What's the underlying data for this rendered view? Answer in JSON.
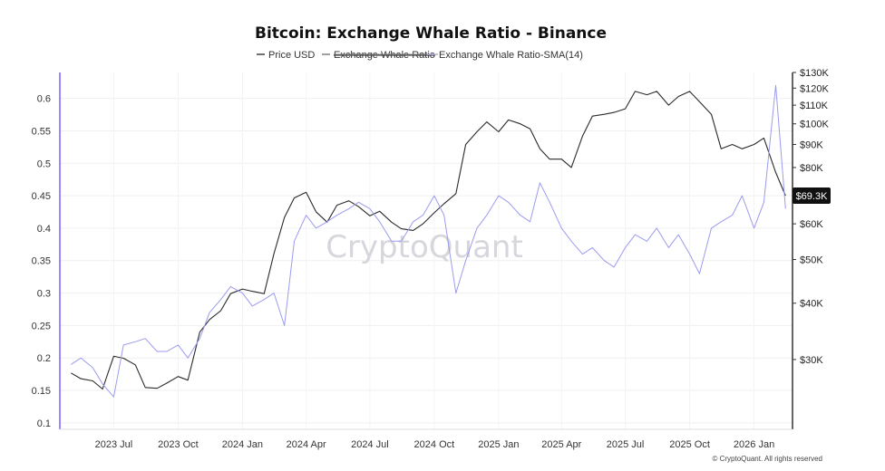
{
  "chart_data": {
    "type": "line",
    "title": "Bitcoin: Exchange Whale Ratio - Binance",
    "legend": [
      {
        "label": "Price USD",
        "color": "#333333",
        "struck": false
      },
      {
        "label": "Exchange Whale Ratio",
        "color": "#777777",
        "struck": true
      },
      {
        "label": "Exchange Whale Ratio-SMA(14)",
        "color": "#b6b6f0",
        "struck": false
      }
    ],
    "legend_position": "top-center",
    "x_ticks": [
      "2023 Jul",
      "2023 Oct",
      "2024 Jan",
      "2024 Apr",
      "2024 Jul",
      "2024 Oct",
      "2025 Jan",
      "2025 Apr",
      "2025 Jul",
      "2025 Oct",
      "2026 Jan"
    ],
    "y_left": {
      "ticks": [
        "0.1",
        "0.15",
        "0.2",
        "0.25",
        "0.3",
        "0.35",
        "0.4",
        "0.45",
        "0.5",
        "0.55",
        "0.6"
      ],
      "ylim": [
        0.09,
        0.64
      ],
      "color": "#7b61ff"
    },
    "y_right": {
      "ticks": [
        "$30K",
        "$40K",
        "$50K",
        "$60K",
        "$80K",
        "$90K",
        "$100K",
        "$110K",
        "$120K",
        "$130K"
      ],
      "scale": "log",
      "ylim": [
        21000,
        130000
      ]
    },
    "current_price_label": "$69.3K",
    "grid": true,
    "x_dates": [
      "2023-05-01",
      "2023-05-15",
      "2023-06-01",
      "2023-06-15",
      "2023-07-01",
      "2023-07-15",
      "2023-08-01",
      "2023-08-15",
      "2023-09-01",
      "2023-09-15",
      "2023-10-01",
      "2023-10-15",
      "2023-11-01",
      "2023-11-15",
      "2023-12-01",
      "2023-12-15",
      "2024-01-01",
      "2024-01-15",
      "2024-02-01",
      "2024-02-15",
      "2024-03-01",
      "2024-03-15",
      "2024-04-01",
      "2024-04-15",
      "2024-05-01",
      "2024-05-15",
      "2024-06-01",
      "2024-06-15",
      "2024-07-01",
      "2024-07-15",
      "2024-08-01",
      "2024-08-15",
      "2024-09-01",
      "2024-09-15",
      "2024-10-01",
      "2024-10-15",
      "2024-11-01",
      "2024-11-15",
      "2024-12-01",
      "2024-12-15",
      "2025-01-01",
      "2025-01-15",
      "2025-02-01",
      "2025-02-15",
      "2025-03-01",
      "2025-03-15",
      "2025-04-01",
      "2025-04-15",
      "2025-05-01",
      "2025-05-15",
      "2025-06-01",
      "2025-06-15",
      "2025-07-01",
      "2025-07-15",
      "2025-08-01",
      "2025-08-15",
      "2025-09-01",
      "2025-09-15",
      "2025-10-01",
      "2025-10-15",
      "2025-11-01",
      "2025-11-15",
      "2025-12-01",
      "2025-12-15",
      "2026-01-01",
      "2026-01-15",
      "2026-02-01",
      "2026-02-15"
    ],
    "series": [
      {
        "name": "Price USD",
        "axis": "right",
        "color": "#2a2a2a",
        "values": [
          28000,
          27200,
          26900,
          25800,
          30500,
          30200,
          29200,
          26000,
          25900,
          26600,
          27500,
          27000,
          34500,
          36800,
          38500,
          42000,
          43000,
          42500,
          42000,
          51500,
          62000,
          68500,
          70500,
          63800,
          60500,
          66000,
          67500,
          65500,
          62500,
          64000,
          60500,
          58500,
          58000,
          60000,
          63500,
          66500,
          70000,
          90000,
          96000,
          101000,
          96000,
          102000,
          100000,
          97500,
          88000,
          83500,
          83500,
          80000,
          94000,
          104000,
          105000,
          106000,
          108000,
          118000,
          116000,
          118000,
          110000,
          115000,
          118000,
          112000,
          105000,
          88000,
          90000,
          88000,
          90000,
          93000,
          78000,
          69300
        ]
      },
      {
        "name": "Exchange Whale Ratio-SMA(14)",
        "axis": "left",
        "color": "#9b9bf0",
        "values": [
          0.19,
          0.2,
          0.185,
          0.16,
          0.14,
          0.22,
          0.225,
          0.23,
          0.21,
          0.21,
          0.22,
          0.2,
          0.23,
          0.27,
          0.29,
          0.31,
          0.3,
          0.28,
          0.29,
          0.3,
          0.25,
          0.38,
          0.42,
          0.4,
          0.41,
          0.42,
          0.43,
          0.44,
          0.43,
          0.41,
          0.38,
          0.38,
          0.41,
          0.42,
          0.45,
          0.42,
          0.3,
          0.35,
          0.4,
          0.42,
          0.45,
          0.44,
          0.42,
          0.41,
          0.47,
          0.44,
          0.4,
          0.38,
          0.36,
          0.37,
          0.35,
          0.34,
          0.37,
          0.39,
          0.38,
          0.4,
          0.37,
          0.39,
          0.36,
          0.33,
          0.4,
          0.41,
          0.42,
          0.45,
          0.4,
          0.44,
          0.62,
          0.43
        ]
      }
    ]
  },
  "footer": {
    "copyright": "© CryptoQuant. All rights reserved"
  },
  "watermark": "CryptoQuant"
}
